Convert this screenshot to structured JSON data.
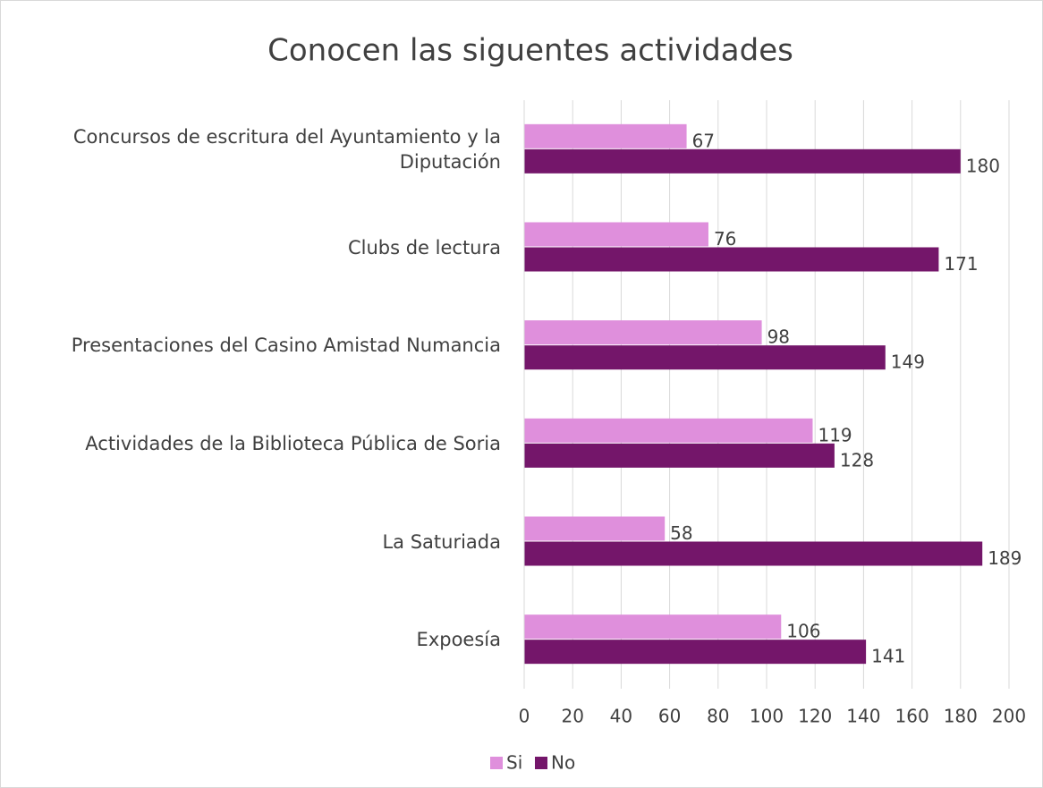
{
  "chart_data": {
    "type": "bar",
    "orientation": "horizontal",
    "title": "Conocen las siguentes actividades",
    "categories": [
      "Concursos de escritura del Ayuntamiento y la Diputación",
      "Clubs de lectura",
      "Presentaciones del Casino Amistad Numancia",
      "Actividades de la Biblioteca Pública de Soria",
      "La Saturiada",
      "Expoesía"
    ],
    "series": [
      {
        "name": "Si",
        "color": "#df8fdc",
        "values": [
          67,
          76,
          98,
          119,
          58,
          106
        ]
      },
      {
        "name": "No",
        "color": "#74166a",
        "values": [
          180,
          171,
          149,
          128,
          189,
          141
        ]
      }
    ],
    "xlim": [
      0,
      200
    ],
    "xticks": [
      0,
      20,
      40,
      60,
      80,
      100,
      120,
      140,
      160,
      180,
      200
    ],
    "grid": true,
    "legend": "bottom"
  }
}
